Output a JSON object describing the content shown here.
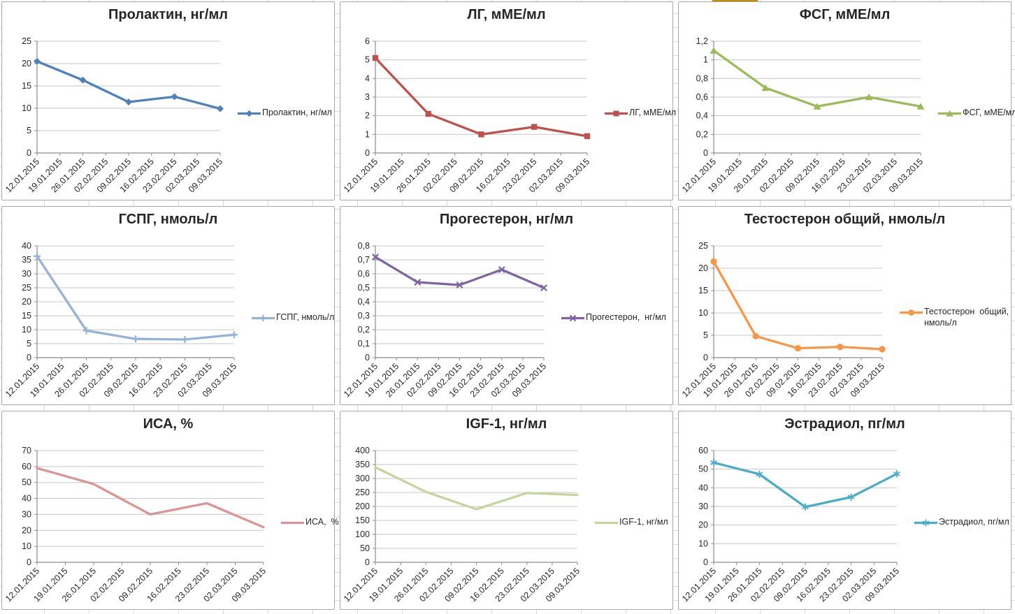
{
  "worksheet": {
    "grid_color": "#D9D9D9",
    "chart_border_color": "#A6A6A6",
    "cell_highlight": {
      "color": "#BF9000",
      "x": 1019,
      "width": 65
    }
  },
  "chart_data": [
    {
      "type": "line",
      "title": "Пролактин, нг/мл",
      "legend_lines": [
        "Пролактин, нг/мл"
      ],
      "color": "#4F81BD",
      "marker": "diamond",
      "categories": [
        "12.01.2015",
        "19.01.2015",
        "26.01.2015",
        "02.02.2015",
        "09.02.2015",
        "16.02.2015",
        "23.02.2015",
        "02.03.2015",
        "09.03.2015"
      ],
      "x_index": [
        0,
        2,
        4,
        6,
        8
      ],
      "values": [
        20.5,
        16.3,
        11.4,
        12.6,
        9.9
      ],
      "ylim": [
        0,
        25
      ],
      "y_ticks": [
        "0",
        "5",
        "10",
        "15",
        "20",
        "25"
      ],
      "grid": true,
      "legend_position": "right"
    },
    {
      "type": "line",
      "title": "ЛГ, мМЕ/мл",
      "legend_lines": [
        "ЛГ, мМЕ/мл"
      ],
      "color": "#C0504D",
      "marker": "square",
      "categories": [
        "12.01.2015",
        "19.01.2015",
        "26.01.2015",
        "02.02.2015",
        "09.02.2015",
        "16.02.2015",
        "23.02.2015",
        "02.03.2015",
        "09.03.2015"
      ],
      "x_index": [
        0,
        2,
        4,
        6,
        8
      ],
      "values": [
        5.1,
        2.1,
        1.0,
        1.4,
        0.9
      ],
      "ylim": [
        0,
        6
      ],
      "y_ticks": [
        "0",
        "1",
        "2",
        "3",
        "4",
        "5",
        "6"
      ],
      "grid": true,
      "legend_position": "right"
    },
    {
      "type": "line",
      "title": "ФСГ, мМЕ/мл",
      "legend_lines": [
        "ФСГ, мМЕ/мл"
      ],
      "color": "#9BBB59",
      "marker": "triangle",
      "categories": [
        "12.01.2015",
        "19.01.2015",
        "26.01.2015",
        "02.02.2015",
        "09.02.2015",
        "16.02.2015",
        "23.02.2015",
        "02.03.2015",
        "09.03.2015"
      ],
      "x_index": [
        0,
        2,
        4,
        6,
        8
      ],
      "values": [
        1.1,
        0.7,
        0.5,
        0.6,
        0.5
      ],
      "ylim": [
        0,
        1.2
      ],
      "y_ticks": [
        "0",
        "0,2",
        "0,4",
        "0,6",
        "0,8",
        "1",
        "1,2"
      ],
      "grid": true,
      "legend_position": "right"
    },
    {
      "type": "line",
      "title": "ГСПГ, нмоль/л",
      "legend_lines": [
        "ГСПГ, нмоль/л"
      ],
      "color": "#95B3D7",
      "marker": "plus",
      "categories": [
        "12.01.2015",
        "19.01.2015",
        "26.01.2015",
        "02.02.2015",
        "09.02.2015",
        "16.02.2015",
        "23.02.2015",
        "02.03.2015",
        "09.03.2015"
      ],
      "x_index": [
        0,
        2,
        4,
        6,
        8
      ],
      "values": [
        36.3,
        9.7,
        6.7,
        6.5,
        8.2
      ],
      "ylim": [
        0,
        40
      ],
      "y_ticks": [
        "0",
        "5",
        "10",
        "15",
        "20",
        "25",
        "30",
        "35",
        "40"
      ],
      "grid": true,
      "legend_position": "right"
    },
    {
      "type": "line",
      "title": "Прогестерон, нг/мл",
      "legend_lines": [
        "Прогестерон,  нг/мл"
      ],
      "color": "#8064A2",
      "marker": "xmark",
      "categories": [
        "12.01.2015",
        "19.01.2015",
        "26.01.2015",
        "02.02.2015",
        "09.02.2015",
        "16.02.2015",
        "23.02.2015",
        "02.03.2015",
        "09.03.2015"
      ],
      "x_index": [
        0,
        2,
        4,
        6,
        8
      ],
      "values": [
        0.72,
        0.54,
        0.52,
        0.63,
        0.5
      ],
      "ylim": [
        0,
        0.8
      ],
      "y_ticks": [
        "0",
        "0,1",
        "0,2",
        "0,3",
        "0,4",
        "0,5",
        "0,6",
        "0,7",
        "0,8"
      ],
      "grid": true,
      "legend_position": "right"
    },
    {
      "type": "line",
      "title": "Тестостерон общий, нмоль/л",
      "legend_lines": [
        "Тестостерон  общий,",
        "нмоль/л"
      ],
      "color": "#F79646",
      "marker": "circle",
      "categories": [
        "12.01.2015",
        "19.01.2015",
        "26.01.2015",
        "02.02.2015",
        "09.02.2015",
        "16.02.2015",
        "23.02.2015",
        "02.03.2015",
        "09.03.2015"
      ],
      "x_index": [
        0,
        2,
        4,
        6,
        8
      ],
      "values": [
        21.5,
        4.8,
        2.1,
        2.4,
        1.9
      ],
      "ylim": [
        0,
        25
      ],
      "y_ticks": [
        "0",
        "5",
        "10",
        "15",
        "20",
        "25"
      ],
      "grid": true,
      "legend_position": "right"
    },
    {
      "type": "line",
      "title": "ИСА, %",
      "legend_lines": [
        "ИСА,  %"
      ],
      "color": "#D99694",
      "marker": "none",
      "categories": [
        "12.01.2015",
        "19.01.2015",
        "26.01.2015",
        "02.02.2015",
        "09.02.2015",
        "16.02.2015",
        "23.02.2015",
        "02.03.2015",
        "09.03.2015"
      ],
      "x_index": [
        0,
        2,
        4,
        6,
        8
      ],
      "values": [
        59,
        49,
        30,
        37,
        22
      ],
      "ylim": [
        0,
        70
      ],
      "y_ticks": [
        "0",
        "10",
        "20",
        "30",
        "40",
        "50",
        "60",
        "70"
      ],
      "grid": true,
      "legend_position": "right"
    },
    {
      "type": "line",
      "title": "IGF-1, нг/мл",
      "legend_lines": [
        "IGF-1, нг/мл"
      ],
      "color": "#C3D69B",
      "marker": "none",
      "categories": [
        "12.01.2015",
        "19.01.2015",
        "26.01.2015",
        "02.02.2015",
        "09.02.2015",
        "16.02.2015",
        "23.02.2015",
        "02.03.2015",
        "09.03.2015"
      ],
      "x_index": [
        0,
        2,
        4,
        6,
        8
      ],
      "values": [
        340,
        252,
        190,
        248,
        241
      ],
      "ylim": [
        0,
        400
      ],
      "y_ticks": [
        "0",
        "50",
        "100",
        "150",
        "200",
        "250",
        "300",
        "350",
        "400"
      ],
      "grid": true,
      "legend_position": "right"
    },
    {
      "type": "line",
      "title": "Эстрадиол, пг/мл",
      "legend_lines": [
        "Эстрадиол, пг/мл"
      ],
      "color": "#4BACC6",
      "marker": "asterisk",
      "categories": [
        "12.01.2015",
        "19.01.2015",
        "26.01.2015",
        "02.02.2015",
        "09.02.2015",
        "16.02.2015",
        "23.02.2015",
        "02.03.2015",
        "09.03.2015"
      ],
      "x_index": [
        0,
        2,
        4,
        6,
        8
      ],
      "values": [
        53.5,
        47.3,
        29.7,
        35,
        47.5
      ],
      "ylim": [
        0,
        60
      ],
      "y_ticks": [
        "0",
        "10",
        "20",
        "30",
        "40",
        "50",
        "60"
      ],
      "grid": true,
      "legend_position": "right"
    }
  ]
}
